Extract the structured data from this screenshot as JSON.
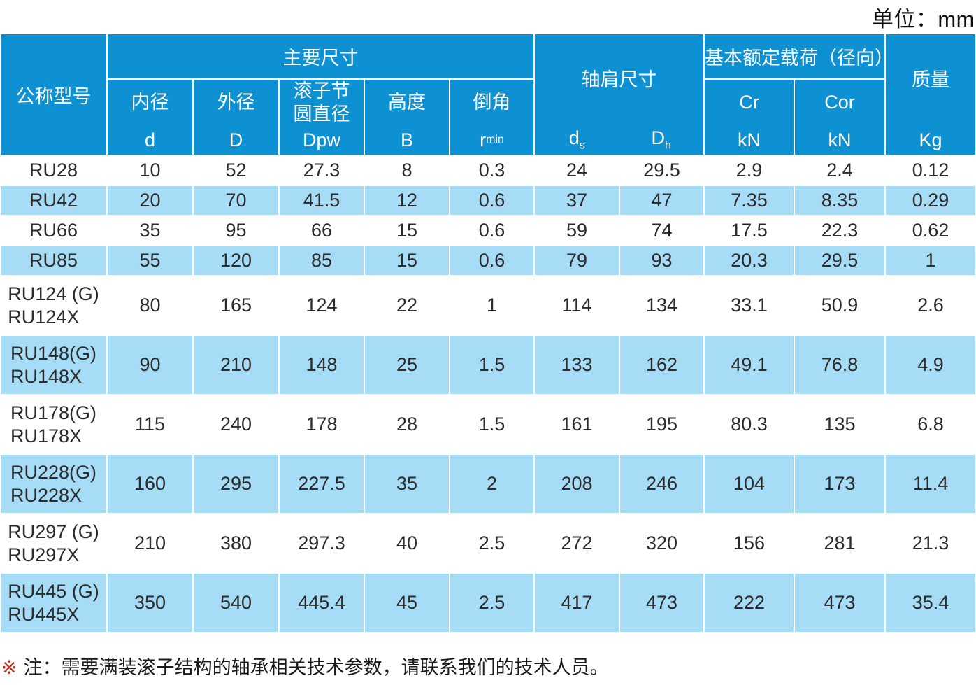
{
  "unit_label": "单位：mm",
  "colors": {
    "header_blue": "#0d91d3",
    "row_alt_blue": "#a6dcf5",
    "note_marker_red": "#c5281c",
    "data_text": "#2b2b2b"
  },
  "table": {
    "header": {
      "model": "公称型号",
      "main_dims": "主要尺寸",
      "main_cols": [
        {
          "label": [
            "内径"
          ],
          "sym": "d",
          "sym_sub": ""
        },
        {
          "label": [
            "外径"
          ],
          "sym": "D",
          "sym_sub": ""
        },
        {
          "label": [
            "滚子节",
            "圆直径"
          ],
          "sym": "Dpw",
          "sym_sub": ""
        },
        {
          "label": [
            "高度"
          ],
          "sym": "B",
          "sym_sub": ""
        },
        {
          "label": [
            "倒角"
          ],
          "sym": "r",
          "sym_sub": "min"
        }
      ],
      "shoulder": {
        "label": "轴肩尺寸",
        "syms": [
          {
            "main": "d",
            "sub": "s"
          },
          {
            "main": "D",
            "sub": "h"
          }
        ]
      },
      "load": {
        "label": "基本额定载荷（径向）",
        "cols": [
          {
            "label": "Cr",
            "sym": "kN"
          },
          {
            "label": "Cor",
            "sym": "kN"
          }
        ]
      },
      "mass": {
        "label": "质量",
        "sym": "Kg"
      }
    },
    "rows": [
      {
        "model": [
          "RU28"
        ],
        "values": [
          "10",
          "52",
          "27.3",
          "8",
          "0.3",
          "24",
          "29.5",
          "2.9",
          "2.4",
          "0.12"
        ]
      },
      {
        "model": [
          "RU42"
        ],
        "values": [
          "20",
          "70",
          "41.5",
          "12",
          "0.6",
          "37",
          "47",
          "7.35",
          "8.35",
          "0.29"
        ]
      },
      {
        "model": [
          "RU66"
        ],
        "values": [
          "35",
          "95",
          "66",
          "15",
          "0.6",
          "59",
          "74",
          "17.5",
          "22.3",
          "0.62"
        ]
      },
      {
        "model": [
          "RU85"
        ],
        "values": [
          "55",
          "120",
          "85",
          "15",
          "0.6",
          "79",
          "93",
          "20.3",
          "29.5",
          "1"
        ]
      },
      {
        "model": [
          "RU124 (G)",
          "RU124X"
        ],
        "values": [
          "80",
          "165",
          "124",
          "22",
          "1",
          "114",
          "134",
          "33.1",
          "50.9",
          "2.6"
        ]
      },
      {
        "model": [
          "RU148(G)",
          "RU148X"
        ],
        "values": [
          "90",
          "210",
          "148",
          "25",
          "1.5",
          "133",
          "162",
          "49.1",
          "76.8",
          "4.9"
        ]
      },
      {
        "model": [
          "RU178(G)",
          "RU178X"
        ],
        "values": [
          "115",
          "240",
          "178",
          "28",
          "1.5",
          "161",
          "195",
          "80.3",
          "135",
          "6.8"
        ]
      },
      {
        "model": [
          "RU228(G)",
          "RU228X"
        ],
        "values": [
          "160",
          "295",
          "227.5",
          "35",
          "2",
          "208",
          "246",
          "104",
          "173",
          "11.4"
        ]
      },
      {
        "model": [
          "RU297 (G)",
          "RU297X"
        ],
        "values": [
          "210",
          "380",
          "297.3",
          "40",
          "2.5",
          "272",
          "320",
          "156",
          "281",
          "21.3"
        ]
      },
      {
        "model": [
          "RU445 (G)",
          "RU445X"
        ],
        "values": [
          "350",
          "540",
          "445.4",
          "45",
          "2.5",
          "417",
          "473",
          "222",
          "473",
          "35.4"
        ]
      }
    ]
  },
  "note": {
    "marker": "※",
    "text": "注：需要满装滚子结构的轴承相关技术参数，请联系我们的技术人员。"
  }
}
